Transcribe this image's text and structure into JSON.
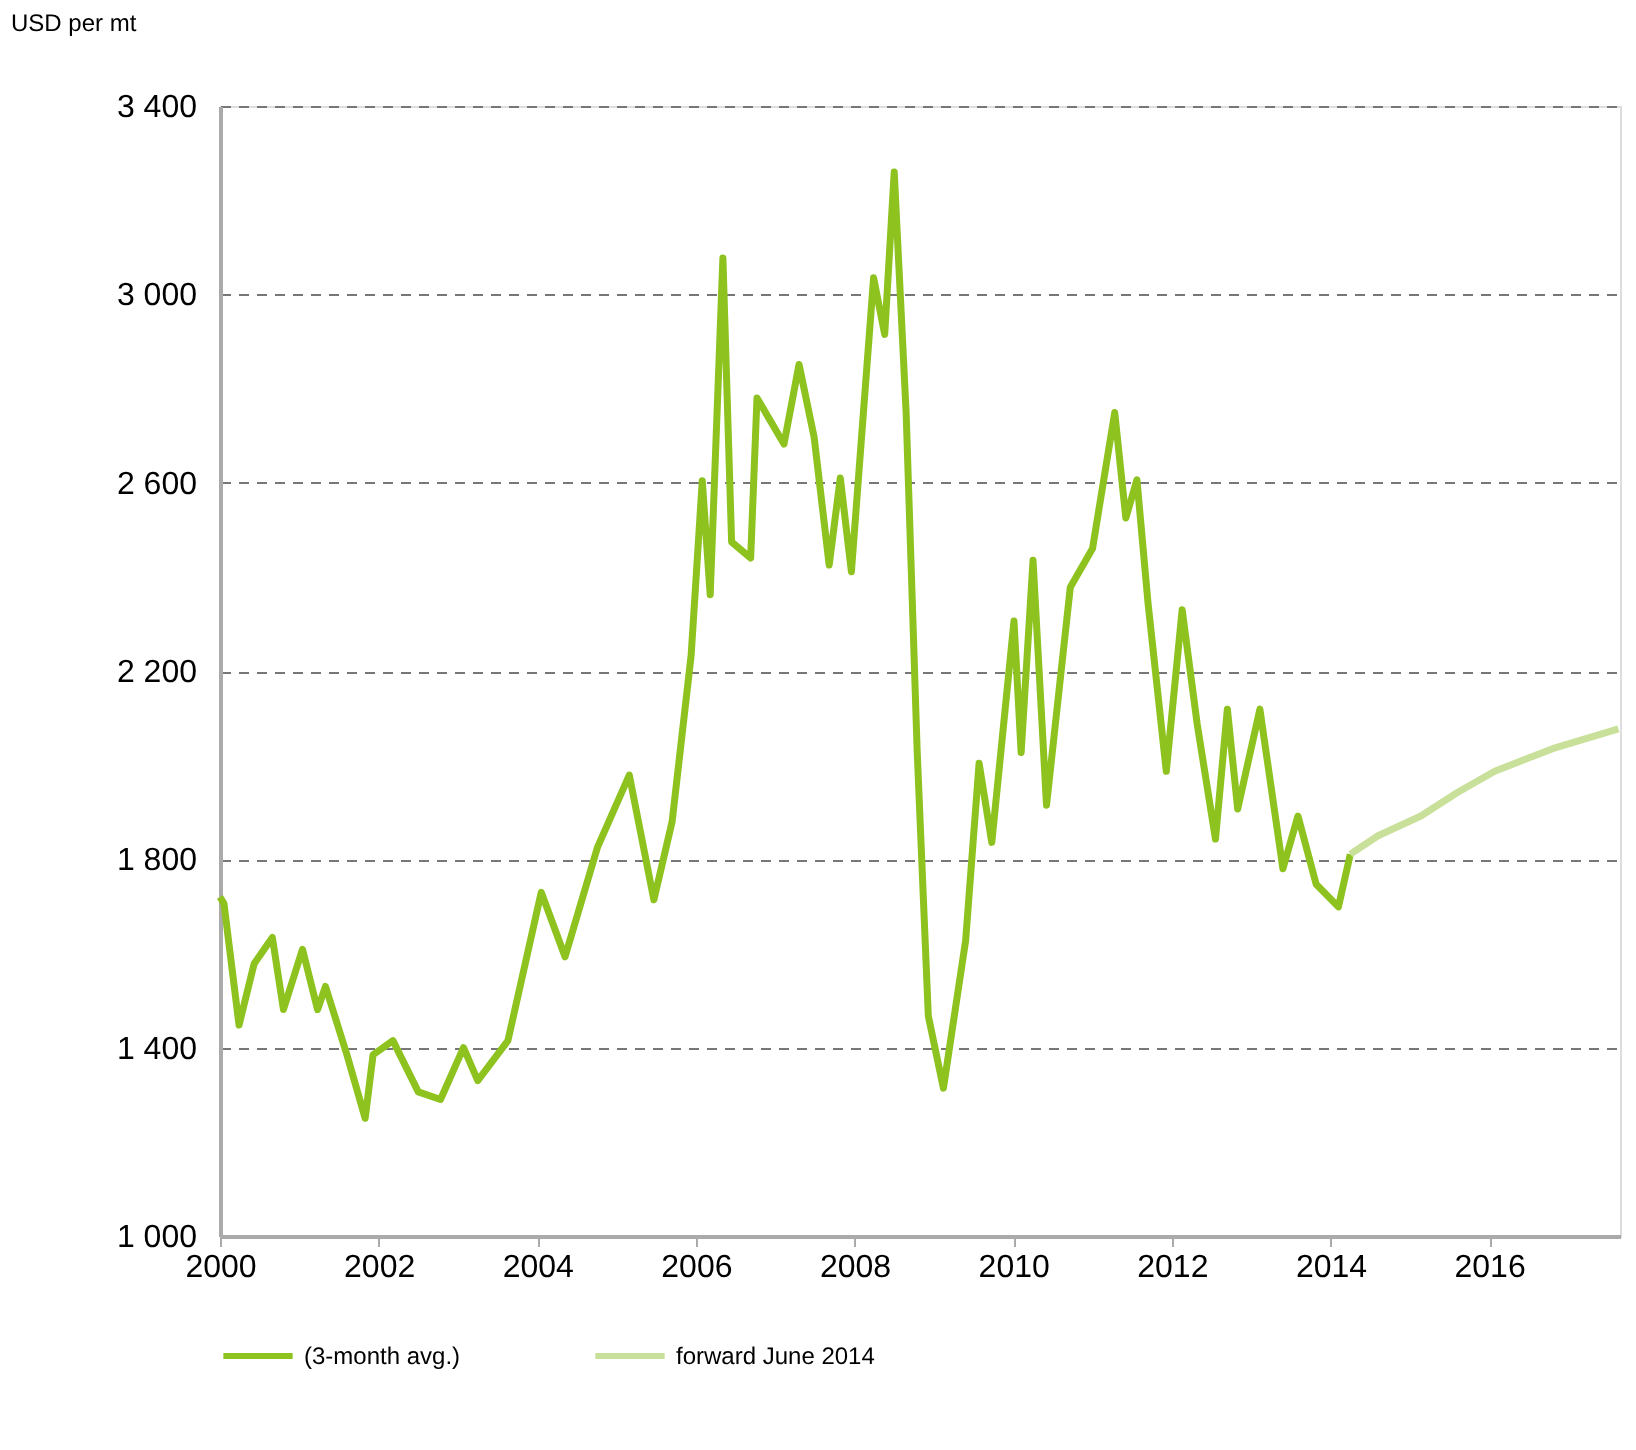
{
  "chart_data": {
    "type": "line",
    "ylabel": "USD per mt",
    "xlim": [
      2000,
      2017.65
    ],
    "xticks": [
      2000,
      2002,
      2004,
      2006,
      2008,
      2010,
      2012,
      2014,
      2016
    ],
    "ylim": [
      1000,
      3400
    ],
    "yticks": [
      {
        "value": 1000,
        "label": "1 000"
      },
      {
        "value": 1400,
        "label": "1 400"
      },
      {
        "value": 1800,
        "label": "1 800"
      },
      {
        "value": 2200,
        "label": "2 200"
      },
      {
        "value": 2600,
        "label": "2 600"
      },
      {
        "value": 3000,
        "label": "3 000"
      },
      {
        "value": 3400,
        "label": "3 400"
      }
    ],
    "grid": "y",
    "legend": "bottom",
    "marker": "none",
    "line_style": "solid",
    "series": [
      {
        "name": "(3-month avg.)",
        "color": "#8dc21f",
        "x": [
          2000.0,
          2000.05,
          2000.24,
          2000.43,
          2000.66,
          2000.8,
          2001.04,
          2001.23,
          2001.33,
          2001.6,
          2001.83,
          2001.93,
          2002.18,
          2002.5,
          2002.78,
          2003.07,
          2003.25,
          2003.63,
          2004.05,
          2004.35,
          2004.76,
          2005.16,
          2005.47,
          2005.7,
          2005.94,
          2006.08,
          2006.18,
          2006.34,
          2006.45,
          2006.69,
          2006.77,
          2007.11,
          2007.3,
          2007.49,
          2007.68,
          2007.82,
          2007.96,
          2008.24,
          2008.38,
          2008.5,
          2008.65,
          2008.79,
          2008.93,
          2009.12,
          2009.4,
          2009.57,
          2009.73,
          2010.01,
          2010.1,
          2010.25,
          2010.42,
          2010.72,
          2011.0,
          2011.28,
          2011.42,
          2011.56,
          2011.7,
          2011.93,
          2012.13,
          2012.32,
          2012.55,
          2012.7,
          2012.83,
          2013.11,
          2013.4,
          2013.59,
          2013.82,
          2014.1,
          2014.25
        ],
        "values": [
          1720,
          1706,
          1448,
          1578,
          1634,
          1481,
          1609,
          1481,
          1530,
          1385,
          1250,
          1385,
          1415,
          1306,
          1290,
          1400,
          1330,
          1415,
          1730,
          1593,
          1826,
          1979,
          1714,
          1880,
          2234,
          2604,
          2362,
          3077,
          2474,
          2440,
          2780,
          2682,
          2851,
          2697,
          2425,
          2610,
          2411,
          3035,
          2915,
          3260,
          2749,
          2027,
          1467,
          1314,
          1627,
          2004,
          1836,
          2306,
          2027,
          2435,
          1915,
          2378,
          2460,
          2749,
          2525,
          2606,
          2344,
          1987,
          2330,
          2087,
          1843,
          2119,
          1907,
          2119,
          1780,
          1892,
          1747,
          1699,
          1811
        ]
      },
      {
        "name": "forward June 2014",
        "color": "#c8e09a",
        "x": [
          2014.25,
          2014.6,
          2015.14,
          2015.6,
          2016.07,
          2016.8,
          2017.63
        ],
        "values": [
          1811,
          1850,
          1892,
          1942,
          1987,
          2035,
          2077
        ]
      }
    ]
  }
}
